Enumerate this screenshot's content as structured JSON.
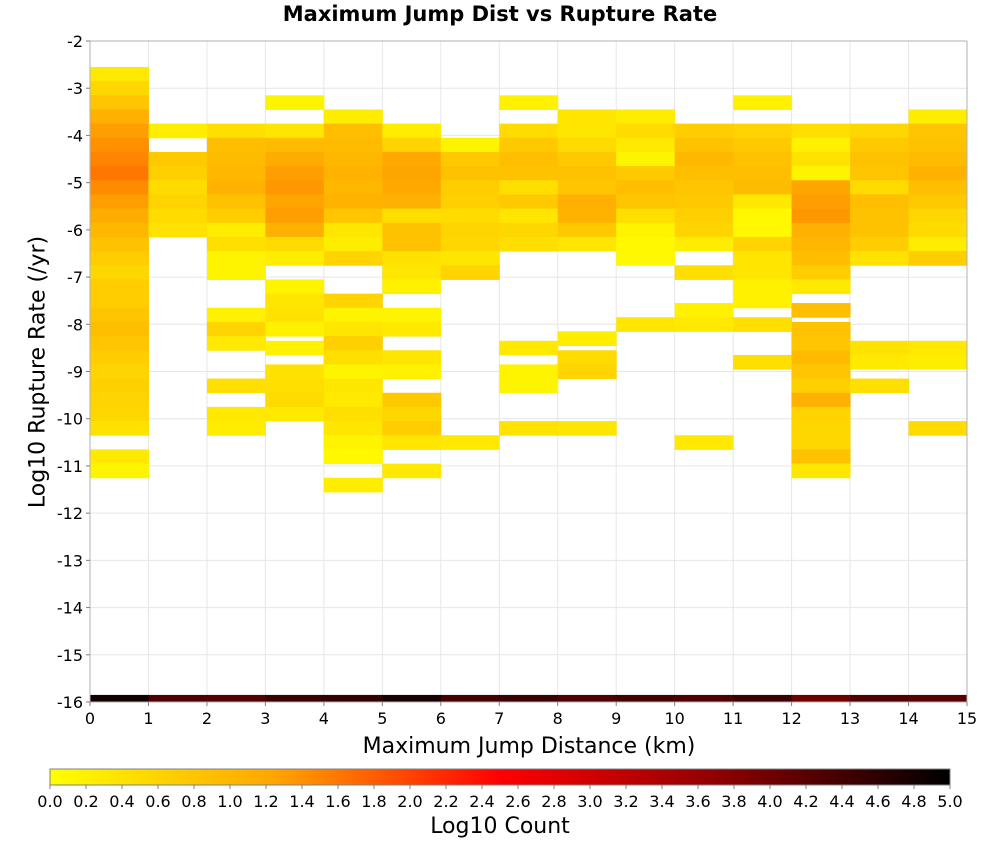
{
  "chart_data": {
    "type": "heatmap",
    "title": "Maximum Jump Dist vs Rupture Rate",
    "xlabel": "Maximum Jump Distance (km)",
    "ylabel": "Log10 Rupture Rate (/yr)",
    "xlim": [
      0,
      15
    ],
    "ylim": [
      -16,
      -2
    ],
    "x_ticks": [
      "0",
      "1",
      "2",
      "3",
      "4",
      "5",
      "6",
      "7",
      "8",
      "9",
      "10",
      "11",
      "12",
      "13",
      "14",
      "15"
    ],
    "y_ticks": [
      "-2",
      "-3",
      "-4",
      "-5",
      "-6",
      "-7",
      "-8",
      "-9",
      "-10",
      "-11",
      "-12",
      "-13",
      "-14",
      "-15",
      "-16"
    ],
    "x_bin_width": 1,
    "y_bin_height": 0.3,
    "colorbar": {
      "label": "Log10 Count",
      "min": 0.0,
      "max": 5.0,
      "ticks": [
        "0.0",
        "0.2",
        "0.4",
        "0.6",
        "0.8",
        "1.0",
        "1.2",
        "1.4",
        "1.6",
        "1.8",
        "2.0",
        "2.2",
        "2.4",
        "2.6",
        "2.8",
        "3.0",
        "3.2",
        "3.4",
        "3.6",
        "3.8",
        "4.0",
        "4.2",
        "4.4",
        "4.6",
        "4.8",
        "5.0"
      ],
      "colors": [
        "#ffff00",
        "#ffa500",
        "#ff0000",
        "#8b0000",
        "#000000"
      ]
    },
    "cells": [
      [
        0,
        -2.7,
        0.3
      ],
      [
        0,
        -3.0,
        0.55
      ],
      [
        0,
        -3.3,
        0.8
      ],
      [
        0,
        -3.6,
        1.1
      ],
      [
        0,
        -3.9,
        1.3
      ],
      [
        0,
        -4.2,
        1.4
      ],
      [
        0,
        -4.5,
        1.5
      ],
      [
        0,
        -4.8,
        1.6
      ],
      [
        0,
        -5.1,
        1.45
      ],
      [
        0,
        -5.4,
        1.3
      ],
      [
        0,
        -5.7,
        1.15
      ],
      [
        0,
        -6.0,
        1.0
      ],
      [
        0,
        -6.3,
        0.85
      ],
      [
        0,
        -6.6,
        0.7
      ],
      [
        0,
        -6.9,
        0.55
      ],
      [
        0,
        -7.2,
        0.7
      ],
      [
        0,
        -7.5,
        0.7
      ],
      [
        0,
        -7.8,
        0.8
      ],
      [
        0,
        -8.1,
        0.9
      ],
      [
        0,
        -8.4,
        0.8
      ],
      [
        0,
        -8.7,
        0.7
      ],
      [
        0,
        -9.0,
        0.6
      ],
      [
        0,
        -9.3,
        0.65
      ],
      [
        0,
        -9.6,
        0.6
      ],
      [
        0,
        -9.9,
        0.55
      ],
      [
        0,
        -10.2,
        0.4
      ],
      [
        0,
        -10.8,
        0.3
      ],
      [
        0,
        -11.1,
        0.15
      ],
      [
        1,
        -3.9,
        0.25
      ],
      [
        1,
        -4.5,
        0.75
      ],
      [
        1,
        -4.8,
        0.65
      ],
      [
        1,
        -5.1,
        0.5
      ],
      [
        1,
        -5.4,
        0.6
      ],
      [
        1,
        -5.7,
        0.5
      ],
      [
        1,
        -6.0,
        0.4
      ],
      [
        2,
        -3.9,
        0.45
      ],
      [
        2,
        -4.2,
        0.9
      ],
      [
        2,
        -4.5,
        0.95
      ],
      [
        2,
        -4.8,
        1.0
      ],
      [
        2,
        -5.1,
        1.05
      ],
      [
        2,
        -5.4,
        0.85
      ],
      [
        2,
        -5.7,
        0.7
      ],
      [
        2,
        -6.0,
        0.25
      ],
      [
        2,
        -6.3,
        0.45
      ],
      [
        2,
        -6.6,
        0.15
      ],
      [
        2,
        -6.9,
        0.15
      ],
      [
        2,
        -7.8,
        0.2
      ],
      [
        2,
        -8.1,
        0.6
      ],
      [
        2,
        -8.4,
        0.3
      ],
      [
        2,
        -9.3,
        0.45
      ],
      [
        2,
        -9.9,
        0.3
      ],
      [
        2,
        -10.2,
        0.25
      ],
      [
        3,
        -3.3,
        0.15
      ],
      [
        3,
        -3.9,
        0.35
      ],
      [
        3,
        -4.2,
        0.95
      ],
      [
        3,
        -4.5,
        1.15
      ],
      [
        3,
        -4.8,
        1.3
      ],
      [
        3,
        -5.1,
        1.35
      ],
      [
        3,
        -5.4,
        1.25
      ],
      [
        3,
        -5.7,
        1.3
      ],
      [
        3,
        -6.0,
        1.1
      ],
      [
        3,
        -6.3,
        0.5
      ],
      [
        3,
        -6.6,
        0.25
      ],
      [
        3,
        -7.2,
        0.15
      ],
      [
        3,
        -7.5,
        0.35
      ],
      [
        3,
        -7.8,
        0.4
      ],
      [
        3,
        -8.1,
        0.2
      ],
      [
        3,
        -8.5,
        0.2
      ],
      [
        3,
        -9.0,
        0.4
      ],
      [
        3,
        -9.3,
        0.45
      ],
      [
        3,
        -9.6,
        0.5
      ],
      [
        3,
        -9.9,
        0.3
      ],
      [
        4,
        -3.6,
        0.25
      ],
      [
        4,
        -3.9,
        0.9
      ],
      [
        4,
        -4.2,
        0.95
      ],
      [
        4,
        -4.5,
        1.0
      ],
      [
        4,
        -4.8,
        1.05
      ],
      [
        4,
        -5.1,
        1.0
      ],
      [
        4,
        -5.4,
        1.05
      ],
      [
        4,
        -5.7,
        0.8
      ],
      [
        4,
        -6.0,
        0.35
      ],
      [
        4,
        -6.3,
        0.25
      ],
      [
        4,
        -6.6,
        0.6
      ],
      [
        4,
        -7.5,
        0.6
      ],
      [
        4,
        -7.8,
        0.15
      ],
      [
        4,
        -8.1,
        0.35
      ],
      [
        4,
        -8.4,
        0.65
      ],
      [
        4,
        -8.7,
        0.45
      ],
      [
        4,
        -9.0,
        0.15
      ],
      [
        4,
        -9.3,
        0.35
      ],
      [
        4,
        -9.6,
        0.3
      ],
      [
        4,
        -9.9,
        0.45
      ],
      [
        4,
        -10.2,
        0.35
      ],
      [
        4,
        -10.5,
        0.15
      ],
      [
        4,
        -10.8,
        0.1
      ],
      [
        4,
        -11.4,
        0.25
      ],
      [
        5,
        -3.9,
        0.25
      ],
      [
        5,
        -4.2,
        0.6
      ],
      [
        5,
        -4.5,
        1.2
      ],
      [
        5,
        -4.8,
        1.25
      ],
      [
        5,
        -5.1,
        1.2
      ],
      [
        5,
        -5.4,
        1.1
      ],
      [
        5,
        -5.7,
        0.45
      ],
      [
        5,
        -6.0,
        0.85
      ],
      [
        5,
        -6.3,
        0.85
      ],
      [
        5,
        -6.6,
        0.4
      ],
      [
        5,
        -6.9,
        0.35
      ],
      [
        5,
        -7.2,
        0.2
      ],
      [
        5,
        -7.8,
        0.15
      ],
      [
        5,
        -8.1,
        0.3
      ],
      [
        5,
        -8.7,
        0.35
      ],
      [
        5,
        -9.0,
        0.2
      ],
      [
        5,
        -9.6,
        0.75
      ],
      [
        5,
        -9.9,
        0.55
      ],
      [
        5,
        -10.2,
        0.7
      ],
      [
        5,
        -10.5,
        0.35
      ],
      [
        5,
        -11.1,
        0.3
      ],
      [
        6,
        -4.2,
        0.15
      ],
      [
        6,
        -4.5,
        0.75
      ],
      [
        6,
        -4.8,
        0.85
      ],
      [
        6,
        -5.1,
        0.7
      ],
      [
        6,
        -5.4,
        0.65
      ],
      [
        6,
        -5.7,
        0.5
      ],
      [
        6,
        -6.0,
        0.6
      ],
      [
        6,
        -6.3,
        0.55
      ],
      [
        6,
        -6.6,
        0.35
      ],
      [
        6,
        -6.9,
        0.6
      ],
      [
        6,
        -10.5,
        0.3
      ],
      [
        7,
        -3.3,
        0.2
      ],
      [
        7,
        -3.9,
        0.5
      ],
      [
        7,
        -4.2,
        0.75
      ],
      [
        7,
        -4.5,
        0.9
      ],
      [
        7,
        -4.8,
        0.85
      ],
      [
        7,
        -5.1,
        0.45
      ],
      [
        7,
        -5.4,
        0.75
      ],
      [
        7,
        -5.7,
        0.35
      ],
      [
        7,
        -6.0,
        0.55
      ],
      [
        7,
        -6.3,
        0.45
      ],
      [
        7,
        -8.5,
        0.3
      ],
      [
        7,
        -9.0,
        0.15
      ],
      [
        7,
        -9.3,
        0.15
      ],
      [
        7,
        -10.2,
        0.4
      ],
      [
        8,
        -3.6,
        0.35
      ],
      [
        8,
        -3.9,
        0.35
      ],
      [
        8,
        -4.2,
        0.5
      ],
      [
        8,
        -4.5,
        0.75
      ],
      [
        8,
        -4.8,
        0.85
      ],
      [
        8,
        -5.1,
        0.8
      ],
      [
        8,
        -5.4,
        1.1
      ],
      [
        8,
        -5.7,
        1.05
      ],
      [
        8,
        -6.0,
        0.75
      ],
      [
        8,
        -6.3,
        0.35
      ],
      [
        8,
        -8.3,
        0.25
      ],
      [
        8,
        -8.7,
        0.5
      ],
      [
        8,
        -9.0,
        0.6
      ],
      [
        8,
        -10.2,
        0.35
      ],
      [
        9,
        -3.6,
        0.25
      ],
      [
        9,
        -3.9,
        0.5
      ],
      [
        9,
        -4.2,
        0.3
      ],
      [
        9,
        -4.5,
        0.15
      ],
      [
        9,
        -4.8,
        0.75
      ],
      [
        9,
        -5.1,
        0.9
      ],
      [
        9,
        -5.4,
        0.8
      ],
      [
        9,
        -5.7,
        0.45
      ],
      [
        9,
        -6.0,
        0.15
      ],
      [
        9,
        -6.3,
        0.1
      ],
      [
        9,
        -6.6,
        0.1
      ],
      [
        9,
        -8.0,
        0.35
      ],
      [
        10,
        -3.9,
        0.7
      ],
      [
        10,
        -4.2,
        0.85
      ],
      [
        10,
        -4.5,
        1.0
      ],
      [
        10,
        -4.8,
        0.9
      ],
      [
        10,
        -5.1,
        0.8
      ],
      [
        10,
        -5.4,
        0.75
      ],
      [
        10,
        -5.7,
        0.65
      ],
      [
        10,
        -6.0,
        0.6
      ],
      [
        10,
        -6.3,
        0.25
      ],
      [
        10,
        -6.9,
        0.45
      ],
      [
        10,
        -7.7,
        0.2
      ],
      [
        10,
        -8.0,
        0.3
      ],
      [
        10,
        -10.5,
        0.3
      ],
      [
        11,
        -3.3,
        0.2
      ],
      [
        11,
        -3.9,
        0.6
      ],
      [
        11,
        -4.2,
        0.75
      ],
      [
        11,
        -4.5,
        0.85
      ],
      [
        11,
        -4.8,
        0.9
      ],
      [
        11,
        -5.1,
        0.95
      ],
      [
        11,
        -5.4,
        0.3
      ],
      [
        11,
        -5.7,
        0.1
      ],
      [
        11,
        -6.0,
        0.1
      ],
      [
        11,
        -6.3,
        0.6
      ],
      [
        11,
        -6.6,
        0.35
      ],
      [
        11,
        -6.9,
        0.35
      ],
      [
        11,
        -7.2,
        0.2
      ],
      [
        11,
        -7.5,
        0.2
      ],
      [
        11,
        -8.0,
        0.45
      ],
      [
        11,
        -8.8,
        0.45
      ],
      [
        12,
        -3.9,
        0.45
      ],
      [
        12,
        -4.2,
        0.2
      ],
      [
        12,
        -4.5,
        0.4
      ],
      [
        12,
        -4.8,
        0.15
      ],
      [
        12,
        -5.1,
        1.25
      ],
      [
        12,
        -5.4,
        1.3
      ],
      [
        12,
        -5.7,
        1.35
      ],
      [
        12,
        -6.0,
        1.1
      ],
      [
        12,
        -6.3,
        1.0
      ],
      [
        12,
        -6.6,
        0.9
      ],
      [
        12,
        -6.9,
        0.7
      ],
      [
        12,
        -7.2,
        0.3
      ],
      [
        12,
        -7.7,
        0.9
      ],
      [
        12,
        -8.1,
        0.85
      ],
      [
        12,
        -8.4,
        0.8
      ],
      [
        12,
        -8.7,
        0.95
      ],
      [
        12,
        -9.0,
        0.8
      ],
      [
        12,
        -9.3,
        0.65
      ],
      [
        12,
        -9.6,
        1.1
      ],
      [
        12,
        -9.9,
        0.6
      ],
      [
        12,
        -10.2,
        0.55
      ],
      [
        12,
        -10.5,
        0.55
      ],
      [
        12,
        -10.8,
        0.85
      ],
      [
        12,
        -11.1,
        0.35
      ],
      [
        13,
        -3.9,
        0.55
      ],
      [
        13,
        -4.2,
        0.75
      ],
      [
        13,
        -4.5,
        0.85
      ],
      [
        13,
        -4.8,
        0.8
      ],
      [
        13,
        -5.1,
        0.5
      ],
      [
        13,
        -5.4,
        0.9
      ],
      [
        13,
        -5.7,
        0.85
      ],
      [
        13,
        -6.0,
        0.85
      ],
      [
        13,
        -6.3,
        0.7
      ],
      [
        13,
        -6.6,
        0.4
      ],
      [
        13,
        -8.5,
        0.4
      ],
      [
        13,
        -8.8,
        0.3
      ],
      [
        13,
        -9.3,
        0.45
      ],
      [
        14,
        -3.6,
        0.25
      ],
      [
        14,
        -3.9,
        0.8
      ],
      [
        14,
        -4.2,
        0.85
      ],
      [
        14,
        -4.5,
        0.95
      ],
      [
        14,
        -4.8,
        1.05
      ],
      [
        14,
        -5.1,
        0.9
      ],
      [
        14,
        -5.4,
        0.75
      ],
      [
        14,
        -5.7,
        0.55
      ],
      [
        14,
        -6.0,
        0.5
      ],
      [
        14,
        -6.3,
        0.25
      ],
      [
        14,
        -6.6,
        0.7
      ],
      [
        14,
        -8.5,
        0.3
      ],
      [
        14,
        -8.8,
        0.25
      ],
      [
        14,
        -10.2,
        0.5
      ]
    ],
    "bottom_row": {
      "y": -16,
      "values": [
        4.85,
        4.3,
        4.25,
        4.5,
        4.55,
        4.8,
        4.4,
        4.5,
        4.3,
        4.4,
        4.3,
        4.5,
        4.0,
        4.3,
        4.2
      ]
    }
  }
}
